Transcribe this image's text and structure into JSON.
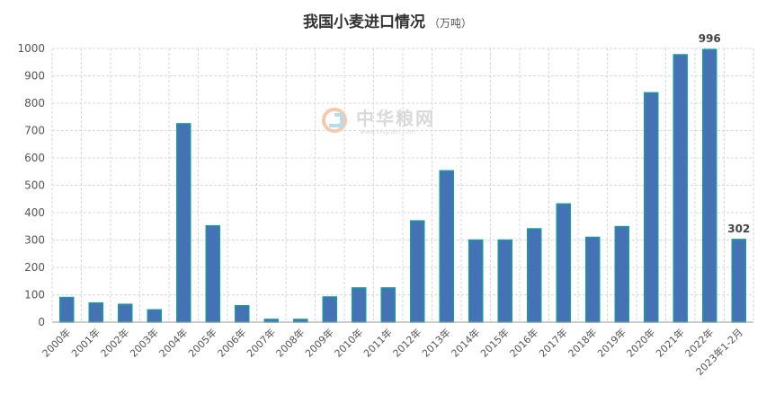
{
  "watermark": {
    "name": "中华粮网",
    "url": "www.cngrain.com"
  },
  "colors": {
    "bar_fill": "#4472b5",
    "bar_stroke": "#1a9aa0",
    "grid": "#d7d7d7",
    "axis": "#9a9a9a"
  },
  "chart_data": {
    "type": "bar",
    "title": "我国小麦进口情况",
    "unit": "（万吨）",
    "xlabel": "",
    "ylabel": "",
    "ylim": [
      0,
      1000
    ],
    "yticks": [
      0,
      100,
      200,
      300,
      400,
      500,
      600,
      700,
      800,
      900,
      1000
    ],
    "grid": true,
    "legend": "none",
    "categories": [
      "2000年",
      "2001年",
      "2002年",
      "2003年",
      "2004年",
      "2005年",
      "2006年",
      "2007年",
      "2008年",
      "2009年",
      "2010年",
      "2011年",
      "2012年",
      "2013年",
      "2014年",
      "2015年",
      "2016年",
      "2017年",
      "2018年",
      "2019年",
      "2020年",
      "2021年",
      "2022年",
      "2023年1-2月"
    ],
    "values": [
      90,
      70,
      65,
      45,
      725,
      352,
      60,
      10,
      10,
      92,
      125,
      125,
      370,
      553,
      300,
      300,
      341,
      432,
      310,
      349,
      838,
      977,
      996,
      302
    ],
    "data_labels": [
      {
        "index": 22,
        "text": "996"
      },
      {
        "index": 23,
        "text": "302"
      }
    ]
  }
}
